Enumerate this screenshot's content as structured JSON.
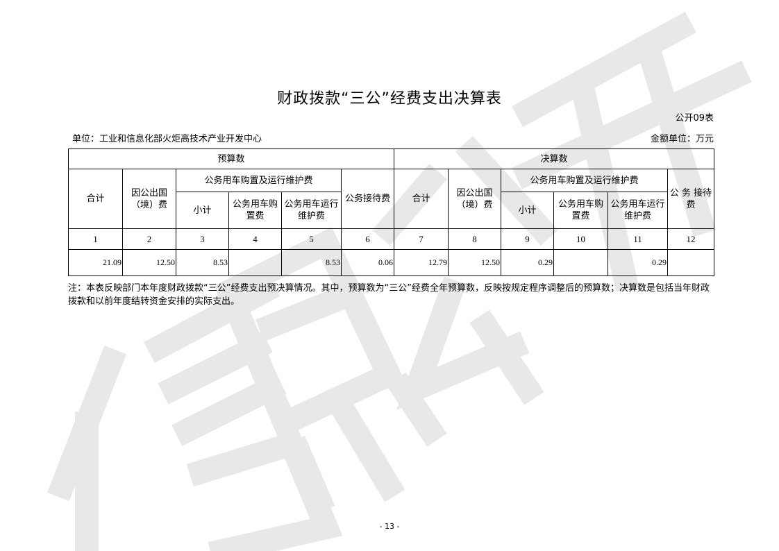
{
  "watermark": "信息公开",
  "title": "财政拨款“三公”经费支出决算表",
  "table_no": "公开09表",
  "unit": "单位：工业和信息化部火炬高技术产业开发中心",
  "money_unit": "金额单位：万元",
  "headers": {
    "budget": "预算数",
    "final": "决算数",
    "total": "合计",
    "abroad": "因公出国（境）费",
    "vehicle": "公务用车购置及运行维护费",
    "subtotal": "小计",
    "purchase": "公务用车购置费",
    "operation": "公务用车运行维护费",
    "reception": "公务接待费",
    "reception_final": "公 务 接待费"
  },
  "col_numbers": [
    "1",
    "2",
    "3",
    "4",
    "5",
    "6",
    "7",
    "8",
    "9",
    "10",
    "11",
    "12"
  ],
  "values": [
    "21.09",
    "12.50",
    "8.53",
    "",
    "8.53",
    "0.06",
    "12.79",
    "12.50",
    "0.29",
    "",
    "0.29",
    ""
  ],
  "note": "注：本表反映部门本年度财政拨款“三公”经费支出预决算情况。其中，预算数为“三公”经费全年预算数，反映按规定程序调整后的预算数；决算数是包括当年财政拨款和以前年度结转资金安排的实际支出。",
  "page_number": "- 13 -"
}
